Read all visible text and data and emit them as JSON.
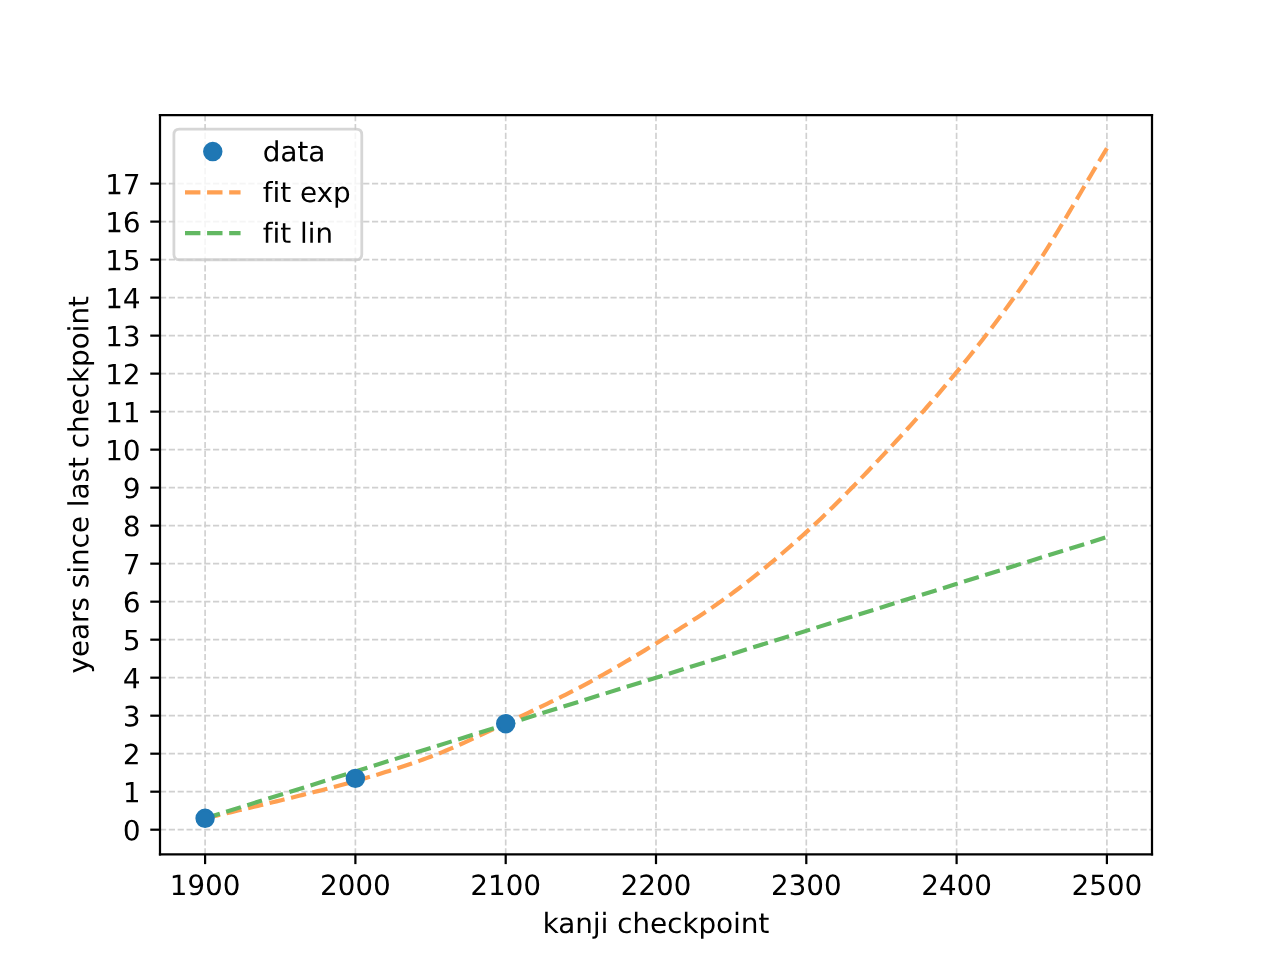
{
  "chart_data": {
    "type": "scatter",
    "xlabel": "kanji checkpoint",
    "ylabel": "years since last checkpoint",
    "series": [
      {
        "name": "data",
        "marker": "circle",
        "color": "#1f77b4",
        "x": [
          1900,
          2000,
          2100
        ],
        "values": [
          0.3,
          1.35,
          2.79
        ]
      },
      {
        "name": "fit exp",
        "type": "line",
        "line_style": "dashed",
        "color": "#ffa052",
        "x": [
          1900,
          1950,
          2000,
          2050,
          2100,
          2150,
          2200,
          2250,
          2300,
          2350,
          2400,
          2450,
          2500
        ],
        "values": [
          0.3,
          0.77,
          1.28,
          1.92,
          2.8,
          3.76,
          4.9,
          6.2,
          7.83,
          9.81,
          12.04,
          14.67,
          17.93
        ]
      },
      {
        "name": "fit lin",
        "type": "line",
        "line_style": "dashed",
        "color": "#62b862",
        "x": [
          1900,
          2500
        ],
        "values": [
          0.3,
          7.7
        ]
      }
    ],
    "xlim": [
      1870,
      2530
    ],
    "ylim": [
      -0.65,
      18.8
    ],
    "xticks": [
      1900,
      2000,
      2100,
      2200,
      2300,
      2400,
      2500
    ],
    "yticks": [
      0,
      1,
      2,
      3,
      4,
      5,
      6,
      7,
      8,
      9,
      10,
      11,
      12,
      13,
      14,
      15,
      16,
      17
    ],
    "grid": true,
    "legend": "top left"
  }
}
